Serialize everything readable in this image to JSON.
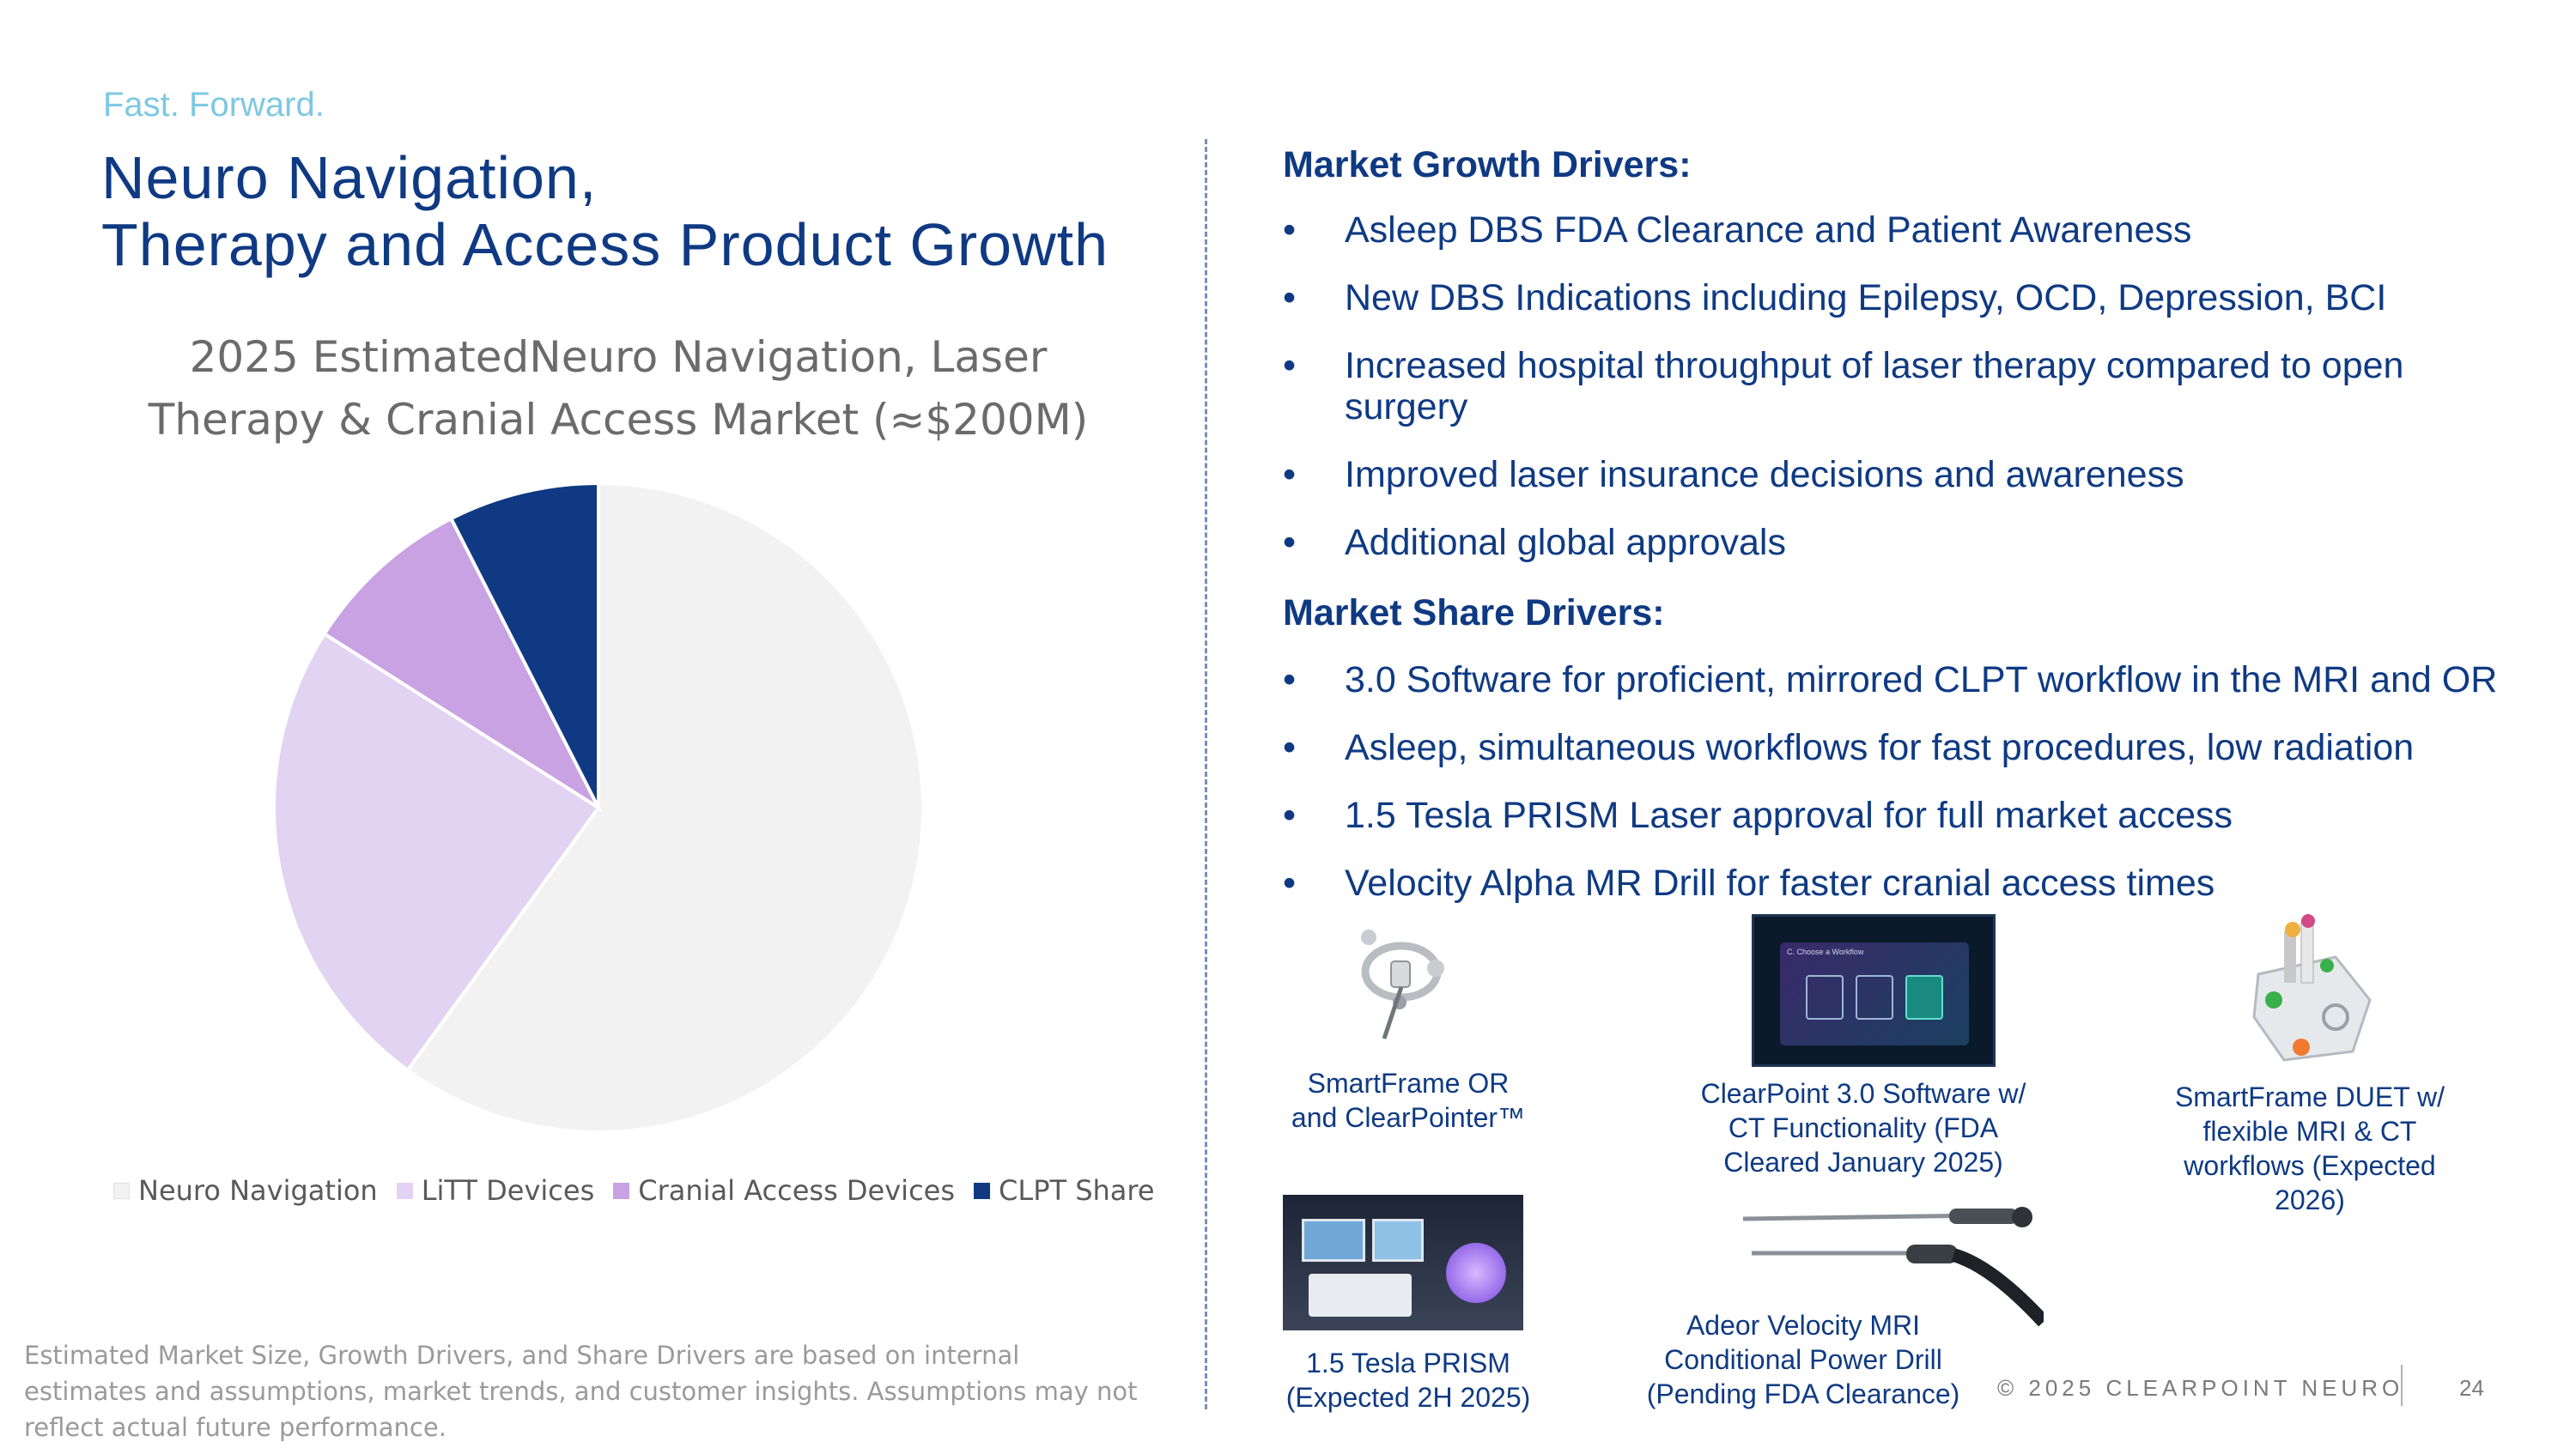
{
  "tagline": "Fast. Forward.",
  "title": {
    "line1": "Neuro Navigation,",
    "line2": "Therapy and Access Product Growth"
  },
  "chart_data": {
    "type": "pie",
    "title_line1": "2025 EstimatedNeuro Navigation, Laser",
    "title_line2": "Therapy & Cranial Access Market (≈$200M)",
    "legend_position": "bottom",
    "categories": [
      "Neuro Navigation",
      "LiTT Devices",
      "Cranial Access Devices",
      "CLPT Share"
    ],
    "values": [
      60,
      24,
      8.5,
      7.5
    ],
    "colors": [
      "#f2f2f2",
      "#e2d3f3",
      "#c8a2e3",
      "#0f3a83"
    ]
  },
  "footnote": "Estimated Market Size, Growth Drivers, and Share Drivers are based on internal estimates and assumptions, market trends, and customer insights.  Assumptions may not reflect actual future performance.",
  "growth": {
    "heading": "Market Growth Drivers:",
    "bullet": "•",
    "items": [
      "Asleep DBS FDA Clearance and Patient Awareness",
      "New DBS Indications including Epilepsy, OCD, Depression, BCI",
      "Increased hospital throughput of laser therapy compared to open surgery",
      "Improved laser insurance decisions and awareness",
      "Additional global approvals"
    ]
  },
  "share": {
    "heading": "Market Share Drivers:",
    "bullet": "•",
    "items": [
      "3.0 Software for proficient, mirrored CLPT workflow in the MRI and OR",
      "Asleep, simultaneous workflows for fast procedures, low radiation",
      "1.5 Tesla PRISM Laser approval for full market access",
      "Velocity Alpha MR Drill for faster cranial access times"
    ]
  },
  "products": {
    "smartframe_or": "SmartFrame OR and ClearPointer™",
    "clearpoint_sw": "ClearPoint 3.0 Software w/ CT Functionality (FDA Cleared January 2025)",
    "smartframe_duet": "SmartFrame DUET w/ flexible MRI & CT workflows (Expected 2026)",
    "prism": "1.5 Tesla PRISM (Expected 2H 2025)",
    "drill": "Adeor Velocity MRI Conditional Power Drill (Pending FDA Clearance)",
    "screen_text": "C. Choose a Workflow"
  },
  "footer": {
    "copyright": "© 2025 CLEARPOINT NEURO",
    "page": "24"
  }
}
